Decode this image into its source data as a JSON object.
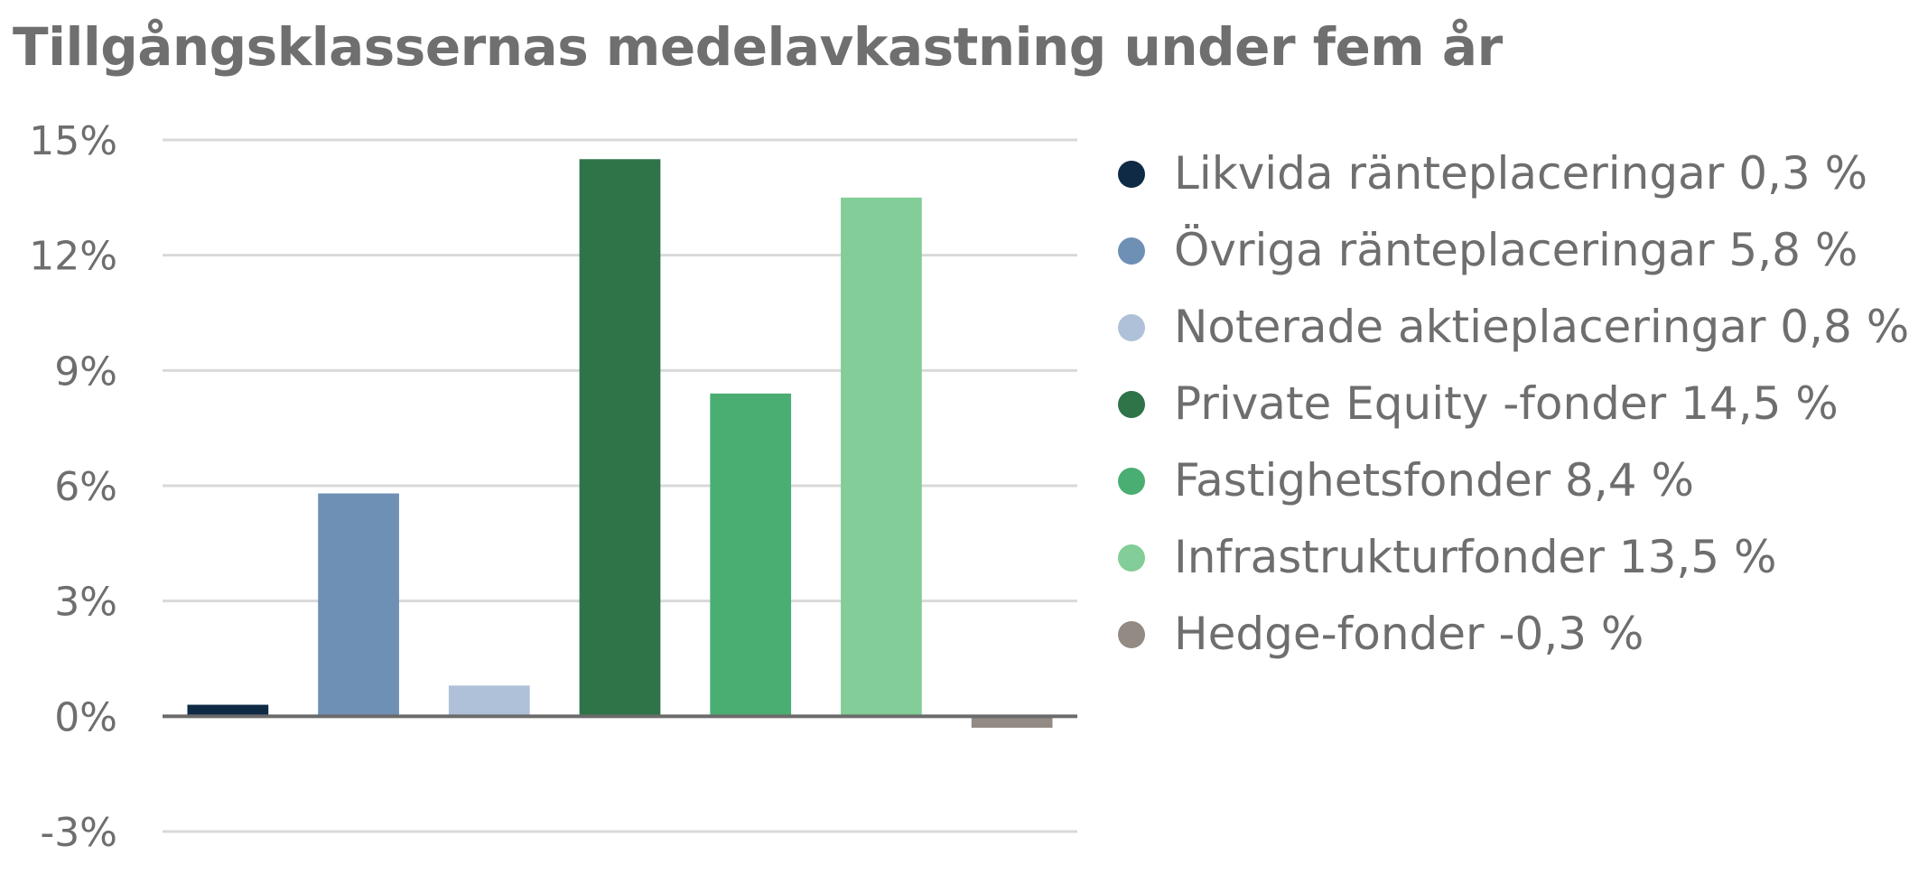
{
  "chart_data": {
    "type": "bar",
    "title": "Tillgångsklassernas medelavkastning under fem år",
    "categories": [
      "Likvida ränteplaceringar",
      "Övriga ränteplaceringar",
      "Noterade aktieplaceringar",
      "Private Equity -fonder",
      "Fastighetsfonder",
      "Infrastrukturfonder",
      "Hedge-fonder"
    ],
    "values": [
      0.3,
      5.8,
      0.8,
      14.5,
      8.4,
      13.5,
      -0.3
    ],
    "colors": [
      "#0f2a45",
      "#6f90b5",
      "#aec1d8",
      "#2f7349",
      "#4aae72",
      "#82cd98",
      "#928a83"
    ],
    "ylim": [
      -3,
      15
    ],
    "yticks": [
      -3,
      0,
      3,
      6,
      9,
      12,
      15
    ],
    "ytick_labels": [
      "-3%",
      "0%",
      "3%",
      "6%",
      "9%",
      "12%",
      "15%"
    ],
    "xlabel": "",
    "ylabel": "",
    "grid": true,
    "legend_position": "right",
    "legend": [
      "Likvida ränteplaceringar 0,3 %",
      "Övriga ränteplaceringar 5,8 %",
      "Noterade aktieplaceringar 0,8 %",
      "Private Equity -fonder 14,5 %",
      "Fastighetsfonder 8,4 %",
      "Infrastrukturfonder 13,5 %",
      "Hedge-fonder -0,3 %"
    ]
  }
}
